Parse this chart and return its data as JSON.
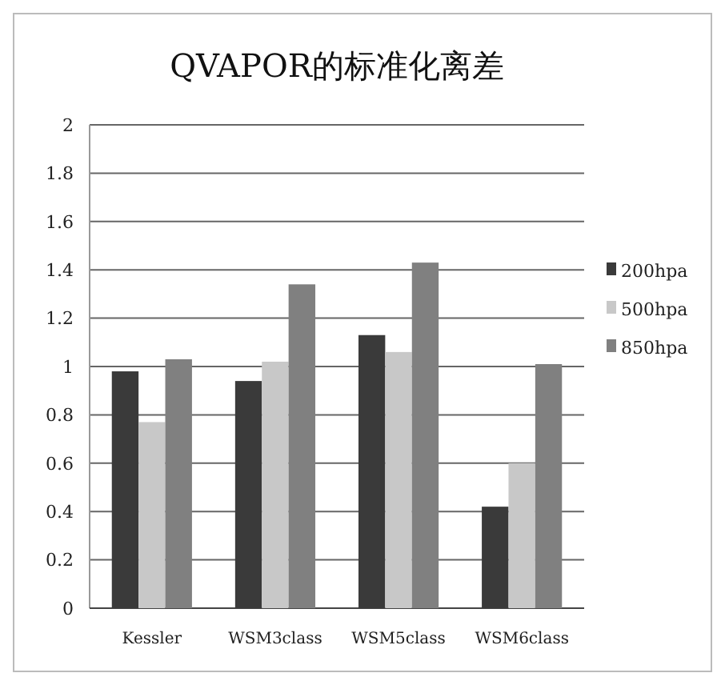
{
  "chart_data": {
    "type": "bar",
    "title": "QVAPOR的标准化离差",
    "categories": [
      "Kessler",
      "WSM3class",
      "WSM5class",
      "WSM6class"
    ],
    "series": [
      {
        "name": "200hpa",
        "color": "#3a3a3a",
        "values": [
          0.98,
          0.94,
          1.13,
          0.42
        ]
      },
      {
        "name": "500hpa",
        "color": "#c8c8c8",
        "values": [
          0.77,
          1.02,
          1.06,
          0.6
        ]
      },
      {
        "name": "850hpa",
        "color": "#808080",
        "values": [
          1.03,
          1.34,
          1.43,
          1.01
        ]
      }
    ],
    "ylim": [
      0,
      2
    ],
    "yticks": [
      0,
      0.2,
      0.4,
      0.6,
      0.8,
      1,
      1.2,
      1.4,
      1.6,
      1.8,
      2
    ],
    "grid": "y",
    "legend": "right"
  }
}
